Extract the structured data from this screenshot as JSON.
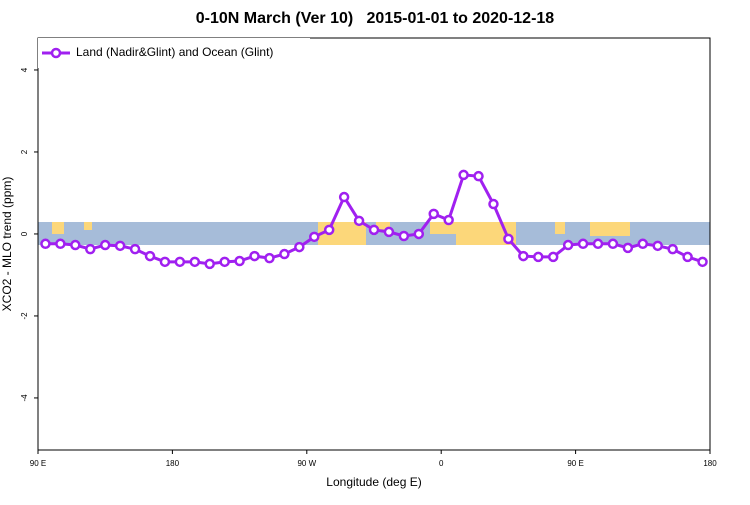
{
  "chart_data": {
    "type": "line",
    "title": "0-10N March (Ver 10)   2015-01-01 to 2020-12-18",
    "x_label": "Longitude (deg E)",
    "y_label": "XCO2 - MLO trend (ppm)",
    "x": [
      95,
      105,
      115,
      125,
      135,
      145,
      155,
      165,
      175,
      185,
      195,
      205,
      215,
      225,
      235,
      245,
      255,
      265,
      275,
      285,
      295,
      305,
      315,
      325,
      335,
      345,
      355,
      365,
      375,
      385,
      395,
      405,
      415,
      425,
      435,
      445,
      455,
      465,
      475,
      485,
      495,
      505,
      515,
      525,
      535
    ],
    "series": [
      {
        "name": "Land (Nadir&Glint) and Ocean (Glint)",
        "color": "#a020f0",
        "values": [
          -0.24,
          -0.24,
          -0.27,
          -0.37,
          -0.27,
          -0.29,
          -0.37,
          -0.54,
          -0.68,
          -0.68,
          -0.68,
          -0.73,
          -0.68,
          -0.66,
          -0.54,
          -0.59,
          -0.49,
          -0.32,
          -0.07,
          0.1,
          0.9,
          0.32,
          0.1,
          0.05,
          -0.05,
          0,
          0.49,
          0.34,
          1.44,
          1.41,
          0.73,
          -0.12,
          -0.54,
          -0.56,
          -0.56,
          -0.27,
          -0.24,
          -0.24,
          -0.24,
          -0.34,
          -0.24,
          -0.29,
          -0.37,
          -0.56,
          -0.68
        ]
      }
    ],
    "xlim": [
      90,
      540
    ],
    "xticks": [
      {
        "value": 90,
        "label": "90 E"
      },
      180,
      {
        "value": 270,
        "label": "90 W"
      },
      {
        "value": 360,
        "label": "0"
      },
      {
        "value": 450,
        "label": "90 E"
      },
      {
        "value": 540,
        "label": "180"
      }
    ],
    "ylim": [
      -5.27,
      4.78
    ],
    "yticks": [
      -4,
      -2,
      0,
      2,
      4
    ],
    "legend": "top-left"
  }
}
